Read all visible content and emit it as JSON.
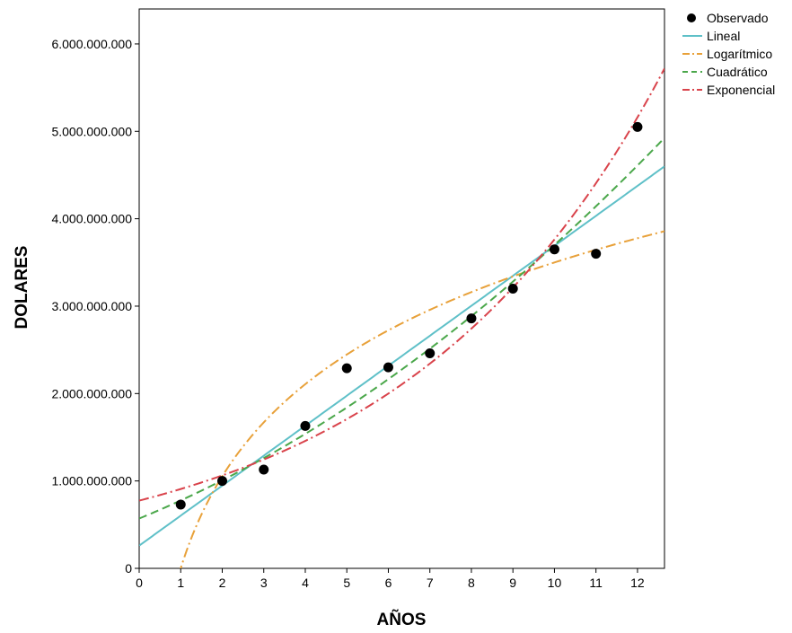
{
  "chart_data": {
    "type": "scatter",
    "xlabel": "AÑOS",
    "ylabel": "DOLARES",
    "xlim": [
      0,
      12.65
    ],
    "ylim": [
      0,
      6400000000
    ],
    "x_ticks": [
      "0",
      "1",
      "2",
      "3",
      "4",
      "5",
      "6",
      "7",
      "8",
      "9",
      "10",
      "11",
      "12"
    ],
    "y_ticks": [
      "0",
      "1.000.000.000",
      "2.000.000.000",
      "3.000.000.000",
      "4.000.000.000",
      "5.000.000.000",
      "6.000.000.000"
    ],
    "legend_position": "top-right-outside",
    "observed": {
      "name": "Observado",
      "color": "#000000",
      "x": [
        1,
        2,
        3,
        4,
        5,
        6,
        7,
        8,
        9,
        10,
        11,
        12
      ],
      "y": [
        730000000,
        1000000000,
        1130000000,
        1630000000,
        2290000000,
        2300000000,
        2460000000,
        2860000000,
        3200000000,
        3650000000,
        3600000000,
        5050000000
      ]
    },
    "series": [
      {
        "name": "Lineal",
        "color": "#5fc0c8",
        "style": "solid",
        "model": "linear",
        "b0": 260000000,
        "b1": 343000000
      },
      {
        "name": "Logarítmico",
        "color": "#e8a13a",
        "style": "dashdot",
        "model": "logarithmic",
        "b0": 0,
        "b1": 1520000000
      },
      {
        "name": "Cuadrático",
        "color": "#4aa74a",
        "style": "dashed",
        "model": "quadratic",
        "b0": 570000000,
        "b1": 195000000,
        "b2": 11800000
      },
      {
        "name": "Exponencial",
        "color": "#d9434b",
        "style": "dashdot",
        "model": "exponential",
        "b0": 775000000,
        "b1": 0.158
      }
    ]
  }
}
